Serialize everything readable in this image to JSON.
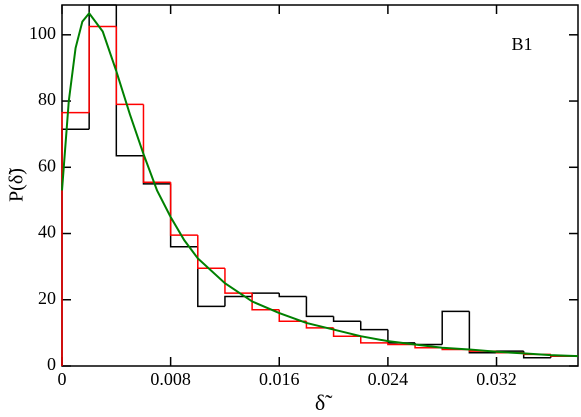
{
  "chart_data": {
    "type": "histogram",
    "annotation": "B1",
    "x_label": "δ̃",
    "y_label": "P(δ̃)",
    "bins": [
      0,
      0.002,
      0.004,
      0.006,
      0.008,
      0.01,
      0.012,
      0.014,
      0.016,
      0.018,
      0.02,
      0.022,
      0.024,
      0.026,
      0.028,
      0.03,
      0.032,
      0.034,
      0.036,
      0.038
    ],
    "series": [
      {
        "color": "#000000",
        "values": [
          71.5,
          109,
          63.5,
          55,
          36,
          18,
          21,
          22,
          21,
          15,
          13.5,
          11,
          7,
          6.5,
          16.5,
          4,
          4.5,
          2.5,
          3
        ]
      },
      {
        "color": "#ff0000",
        "values": [
          76.5,
          102.5,
          79,
          55.5,
          39.5,
          29.5,
          22,
          17,
          13.5,
          11.5,
          9,
          7,
          6.5,
          5.5,
          5,
          4.5,
          4,
          3.5,
          3
        ]
      }
    ],
    "lines": [
      {
        "color": "#008000",
        "x": [
          0,
          0.0005,
          0.001,
          0.0015,
          0.002,
          0.003,
          0.004,
          0.005,
          0.006,
          0.007,
          0.008,
          0.009,
          0.01,
          0.012,
          0.014,
          0.016,
          0.018,
          0.02,
          0.022,
          0.024,
          0.026,
          0.028,
          0.03,
          0.032,
          0.034,
          0.036,
          0.038
        ],
        "values": [
          53,
          80,
          96,
          104,
          106.5,
          101,
          89,
          76,
          64,
          53,
          45,
          38,
          32.5,
          25,
          19.5,
          16,
          13,
          11,
          9,
          7.5,
          6.5,
          5.5,
          5,
          4.3,
          3.8,
          3.3,
          3
        ]
      }
    ],
    "xlim": [
      0,
      0.038
    ],
    "ylim": [
      0,
      109
    ],
    "xticks": [
      0,
      0.008,
      0.016,
      0.024,
      0.032
    ],
    "yticks": [
      0,
      20,
      40,
      60,
      80,
      100
    ]
  }
}
